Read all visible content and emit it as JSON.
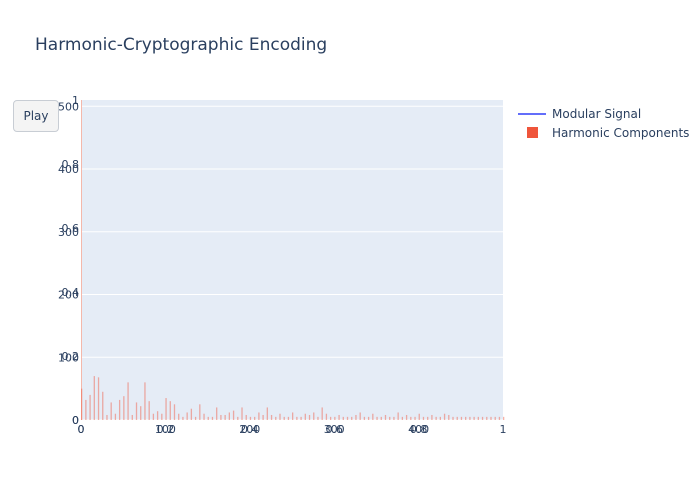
{
  "chart_data": {
    "type": "bar",
    "title": "Harmonic-Cryptographic Encoding",
    "xlabel": "",
    "ylabel": "",
    "grid": true,
    "legend_placement": "right",
    "series": [
      {
        "name": "Modular Signal",
        "kind": "line",
        "color": "#636efa",
        "values": []
      },
      {
        "name": "Harmonic Components",
        "kind": "bar",
        "color": "#ef553b",
        "x": [
          0,
          5,
          10,
          15,
          20,
          25,
          30,
          35,
          40,
          45,
          50,
          55,
          60,
          65,
          70,
          75,
          80,
          85,
          90,
          95,
          100,
          105,
          110,
          115,
          120,
          125,
          130,
          135,
          140,
          145,
          150,
          155,
          160,
          165,
          170,
          175,
          180,
          185,
          190,
          195,
          200,
          205,
          210,
          215,
          220,
          225,
          230,
          235,
          240,
          245,
          250,
          255,
          260,
          265,
          270,
          275,
          280,
          285,
          290,
          295,
          300,
          305,
          310,
          315,
          320,
          325,
          330,
          335,
          340,
          345,
          350,
          355,
          360,
          365,
          370,
          375,
          380,
          385,
          390,
          395,
          400,
          405,
          410,
          415,
          420,
          425,
          430,
          435,
          440,
          445,
          450,
          455,
          460,
          465,
          470,
          475,
          480,
          485,
          490,
          495,
          500
        ],
        "values": [
          50,
          32,
          40,
          70,
          68,
          45,
          8,
          28,
          10,
          32,
          38,
          60,
          8,
          28,
          22,
          60,
          30,
          10,
          14,
          10,
          35,
          30,
          25,
          10,
          5,
          12,
          18,
          5,
          25,
          10,
          5,
          5,
          20,
          8,
          8,
          12,
          15,
          5,
          20,
          8,
          5,
          5,
          12,
          8,
          20,
          8,
          5,
          10,
          5,
          5,
          12,
          5,
          5,
          10,
          8,
          12,
          5,
          20,
          10,
          5,
          5,
          8,
          5,
          5,
          5,
          8,
          12,
          5,
          5,
          10,
          5,
          5,
          8,
          5,
          5,
          12,
          5,
          8,
          5,
          5,
          10,
          5,
          5,
          8,
          5,
          5,
          10,
          8,
          5,
          5,
          5,
          5,
          5,
          5,
          5,
          5,
          5,
          5,
          5,
          5,
          5
        ]
      }
    ],
    "axes": {
      "x": {
        "range": [
          0,
          500
        ],
        "ticks": [
          "0",
          "100",
          "200",
          "300",
          "400"
        ]
      },
      "y": {
        "range": [
          0,
          510
        ],
        "ticks": [
          "0",
          "100",
          "200",
          "300",
          "400",
          "500"
        ]
      },
      "x2": {
        "range": [
          0,
          1
        ],
        "ticks": [
          "0",
          "0.2",
          "0.4",
          "0.6",
          "0.8",
          "1"
        ]
      },
      "y2": {
        "range": [
          0,
          1
        ],
        "ticks": [
          "0",
          "0.2",
          "0.4",
          "0.6",
          "0.8",
          "1"
        ]
      }
    }
  },
  "controls": {
    "play_label": "Play"
  },
  "colors": {
    "plot_bg": "#e5ecf6",
    "grid": "#ffffff",
    "text": "#2a3f5f"
  }
}
